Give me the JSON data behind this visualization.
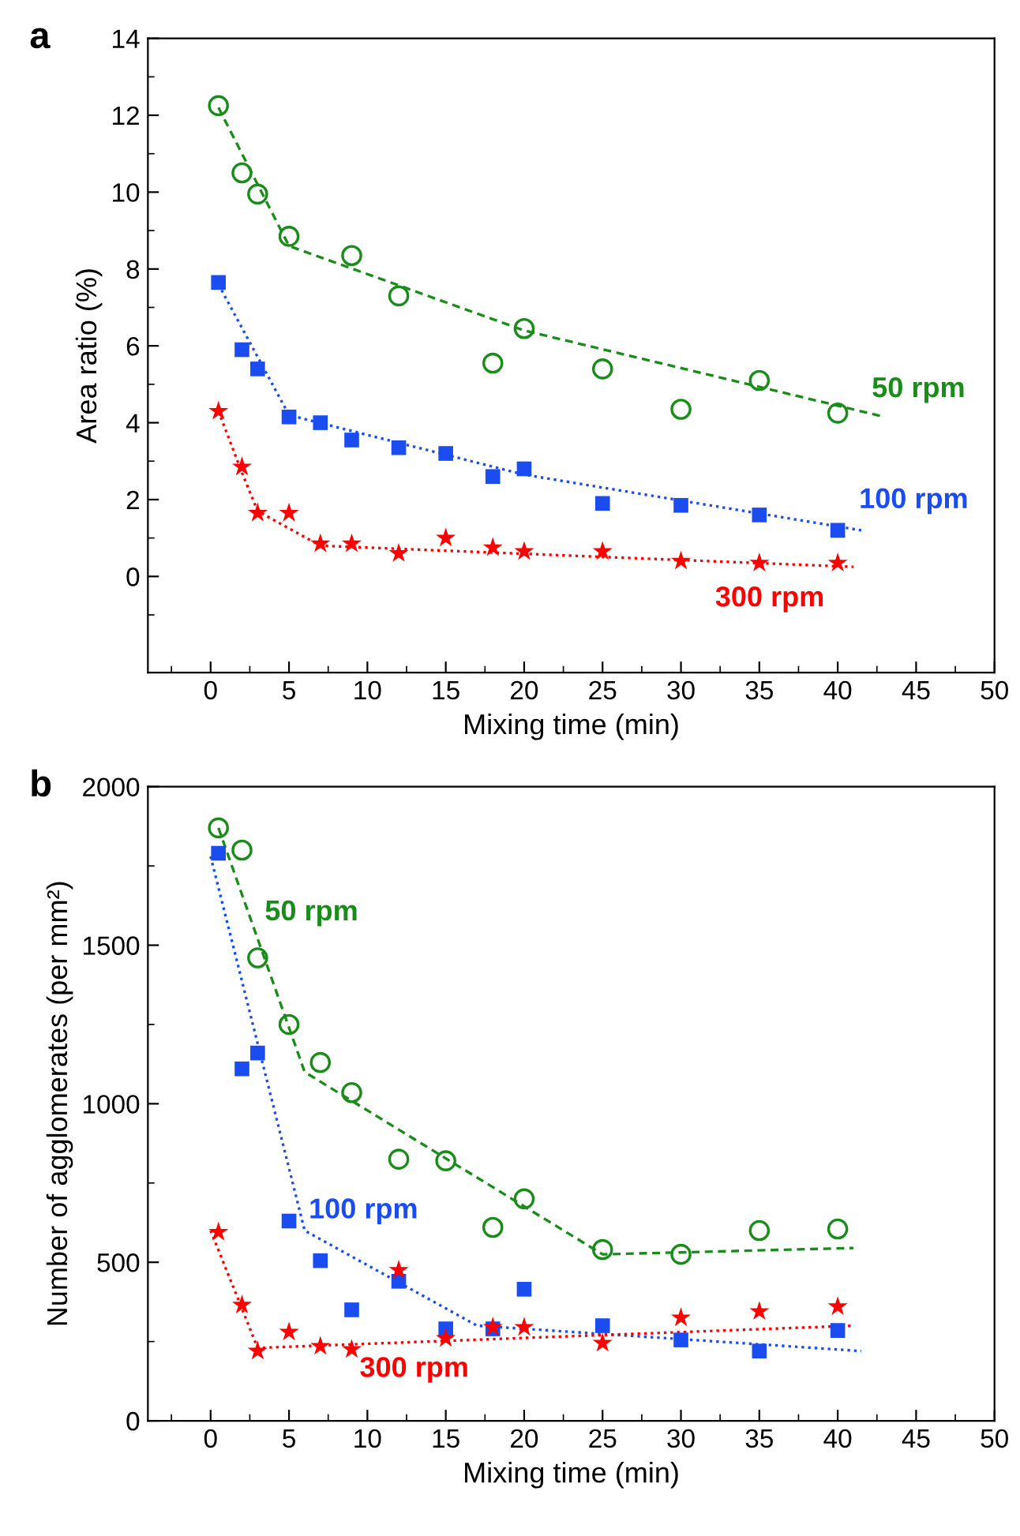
{
  "chart_data": [
    {
      "type": "scatter",
      "title": "a",
      "xlabel": "Mixing time (min)",
      "ylabel": "Area ratio (%)",
      "xlim": [
        -4,
        50
      ],
      "ylim": [
        -2.5,
        14
      ],
      "xticks": [
        {
          "value": -2.5,
          "label": null
        },
        0,
        {
          "value": 2.5,
          "label": null
        },
        5,
        {
          "value": 7.5,
          "label": null
        },
        10,
        {
          "value": 12.5,
          "label": null
        },
        15,
        {
          "value": 17.5,
          "label": null
        },
        20,
        {
          "value": 22.5,
          "label": null
        },
        25,
        {
          "value": 27.5,
          "label": null
        },
        30,
        {
          "value": 32.5,
          "label": null
        },
        35,
        {
          "value": 37.5,
          "label": null
        },
        40,
        {
          "value": 42.5,
          "label": null
        },
        45,
        {
          "value": 47.5,
          "label": null
        },
        50
      ],
      "yticks": [
        {
          "value": -1,
          "label": null
        },
        0,
        {
          "value": 1,
          "label": null
        },
        2,
        {
          "value": 3,
          "label": null
        },
        4,
        {
          "value": 5,
          "label": null
        },
        6,
        {
          "value": 7,
          "label": null
        },
        8,
        {
          "value": 9,
          "label": null
        },
        10,
        {
          "value": 11,
          "label": null
        },
        12,
        {
          "value": 13,
          "label": null
        },
        14
      ],
      "series": [
        {
          "name": "50 rpm",
          "marker": "circle",
          "color": "#1a8c1a",
          "x": [
            0.5,
            2,
            3,
            5,
            9,
            12,
            18,
            20,
            25,
            30,
            35,
            40
          ],
          "values": [
            12.25,
            10.5,
            9.95,
            8.85,
            8.35,
            7.3,
            5.55,
            6.45,
            5.4,
            4.35,
            5.1,
            4.25
          ]
        },
        {
          "name": "100 rpm",
          "marker": "square",
          "color": "#1a4cf0",
          "x": [
            0.5,
            2,
            3,
            5,
            7,
            9,
            12,
            15,
            18,
            20,
            25,
            30,
            35,
            40
          ],
          "values": [
            7.65,
            5.9,
            5.4,
            4.15,
            4.0,
            3.55,
            3.35,
            3.2,
            2.6,
            2.8,
            1.9,
            1.85,
            1.6,
            1.2
          ]
        },
        {
          "name": "300 rpm",
          "marker": "star",
          "color": "#ff0000",
          "x": [
            0.5,
            2,
            3,
            5,
            7,
            9,
            12,
            15,
            18,
            20,
            25,
            30,
            35,
            40
          ],
          "values": [
            4.3,
            2.85,
            1.65,
            1.65,
            0.85,
            0.85,
            0.6,
            1.0,
            0.75,
            0.65,
            0.65,
            0.4,
            0.35,
            0.35
          ]
        },
        {
          "type": "line",
          "line_style": "dashed",
          "color": "#1a8c1a",
          "x": [
            0.5,
            5,
            20,
            43
          ],
          "values": [
            12.2,
            8.6,
            6.4,
            4.15
          ]
        },
        {
          "type": "line",
          "line_style": "dotted",
          "color": "#1a4cf0",
          "x": [
            0.5,
            5,
            20,
            41.5
          ],
          "values": [
            7.6,
            4.2,
            2.65,
            1.2
          ]
        },
        {
          "type": "line",
          "line_style": "dotted",
          "color": "#ff0000",
          "x": [
            0.5,
            2,
            3,
            7,
            41
          ],
          "values": [
            4.3,
            2.7,
            1.7,
            0.8,
            0.25
          ]
        }
      ]
    },
    {
      "type": "scatter",
      "title": "b",
      "xlabel": "Mixing time (min)",
      "ylabel": "Number of agglomerates (per mm²)",
      "xlim": [
        -4,
        50
      ],
      "ylim": [
        0,
        2000
      ],
      "xticks": [
        {
          "value": -2.5,
          "label": null
        },
        0,
        {
          "value": 2.5,
          "label": null
        },
        5,
        {
          "value": 7.5,
          "label": null
        },
        10,
        {
          "value": 12.5,
          "label": null
        },
        15,
        {
          "value": 17.5,
          "label": null
        },
        20,
        {
          "value": 22.5,
          "label": null
        },
        25,
        {
          "value": 27.5,
          "label": null
        },
        30,
        {
          "value": 32.5,
          "label": null
        },
        35,
        {
          "value": 37.5,
          "label": null
        },
        40,
        {
          "value": 42.5,
          "label": null
        },
        45,
        {
          "value": 47.5,
          "label": null
        },
        50
      ],
      "yticks": [
        0,
        {
          "value": 250,
          "label": null
        },
        500,
        {
          "value": 750,
          "label": null
        },
        1000,
        {
          "value": 1250,
          "label": null
        },
        1500,
        {
          "value": 1750,
          "label": null
        },
        2000
      ],
      "series": [
        {
          "name": "50 rpm",
          "marker": "circle",
          "color": "#1a8c1a",
          "x": [
            0.5,
            2,
            3,
            5,
            7,
            9,
            12,
            15,
            18,
            20,
            25,
            30,
            35,
            40
          ],
          "values": [
            1870,
            1800,
            1460,
            1250,
            1130,
            1035,
            825,
            820,
            610,
            700,
            540,
            525,
            600,
            605
          ]
        },
        {
          "name": "100 rpm",
          "marker": "square",
          "color": "#1a4cf0",
          "x": [
            0.5,
            2,
            3,
            5,
            7,
            9,
            12,
            15,
            18,
            20,
            25,
            30,
            35,
            40
          ],
          "values": [
            1790,
            1110,
            1160,
            630,
            505,
            350,
            440,
            290,
            290,
            415,
            300,
            255,
            220,
            285
          ]
        },
        {
          "name": "300 rpm",
          "marker": "star",
          "color": "#ff0000",
          "x": [
            0.5,
            2,
            3,
            5,
            7,
            9,
            12,
            15,
            18,
            20,
            25,
            30,
            35,
            40
          ],
          "values": [
            595,
            365,
            220,
            280,
            235,
            225,
            475,
            260,
            295,
            295,
            245,
            325,
            345,
            360
          ]
        },
        {
          "type": "line",
          "line_style": "dashed",
          "color": "#1a8c1a",
          "x": [
            0.5,
            6,
            25,
            41
          ],
          "values": [
            1870,
            1100,
            525,
            545
          ]
        },
        {
          "type": "line",
          "line_style": "dotted",
          "color": "#1a4cf0",
          "x": [
            0,
            6,
            17,
            41.5
          ],
          "values": [
            1780,
            600,
            300,
            220
          ]
        },
        {
          "type": "line",
          "line_style": "dotted",
          "color": "#ff0000",
          "x": [
            0,
            3,
            41
          ],
          "values": [
            600,
            230,
            300
          ]
        }
      ]
    }
  ]
}
